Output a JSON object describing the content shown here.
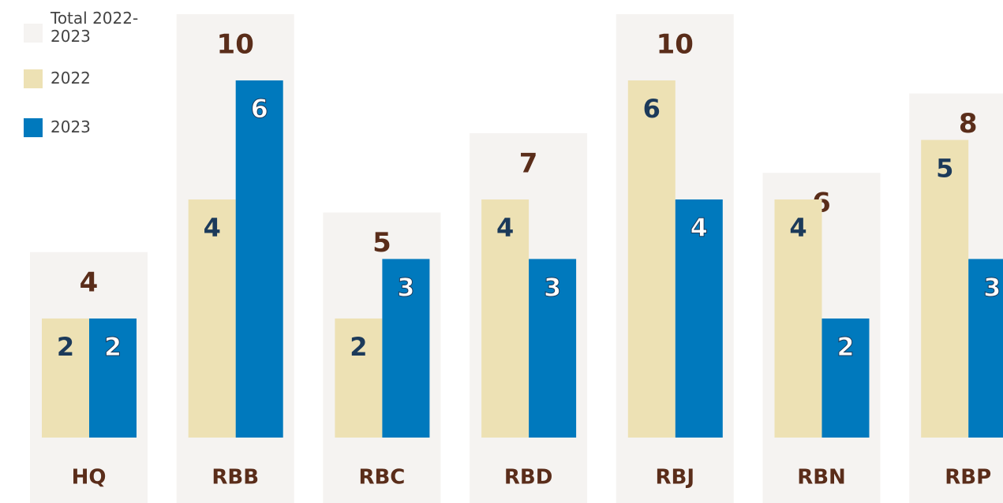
{
  "chart_data": {
    "type": "bar",
    "categories": [
      "HQ",
      "RBB",
      "RBC",
      "RBD",
      "RBJ",
      "RBN",
      "RBP"
    ],
    "series": [
      {
        "name": "Total 2022-2023",
        "color": "#f5f3f1",
        "values": [
          4,
          10,
          5,
          7,
          10,
          6,
          8
        ]
      },
      {
        "name": "2022",
        "color": "#ede1b4",
        "values": [
          2,
          4,
          2,
          4,
          6,
          4,
          5
        ]
      },
      {
        "name": "2023",
        "color": "#0079bd",
        "values": [
          2,
          6,
          3,
          3,
          4,
          2,
          3
        ]
      }
    ],
    "legend": "top-left"
  }
}
